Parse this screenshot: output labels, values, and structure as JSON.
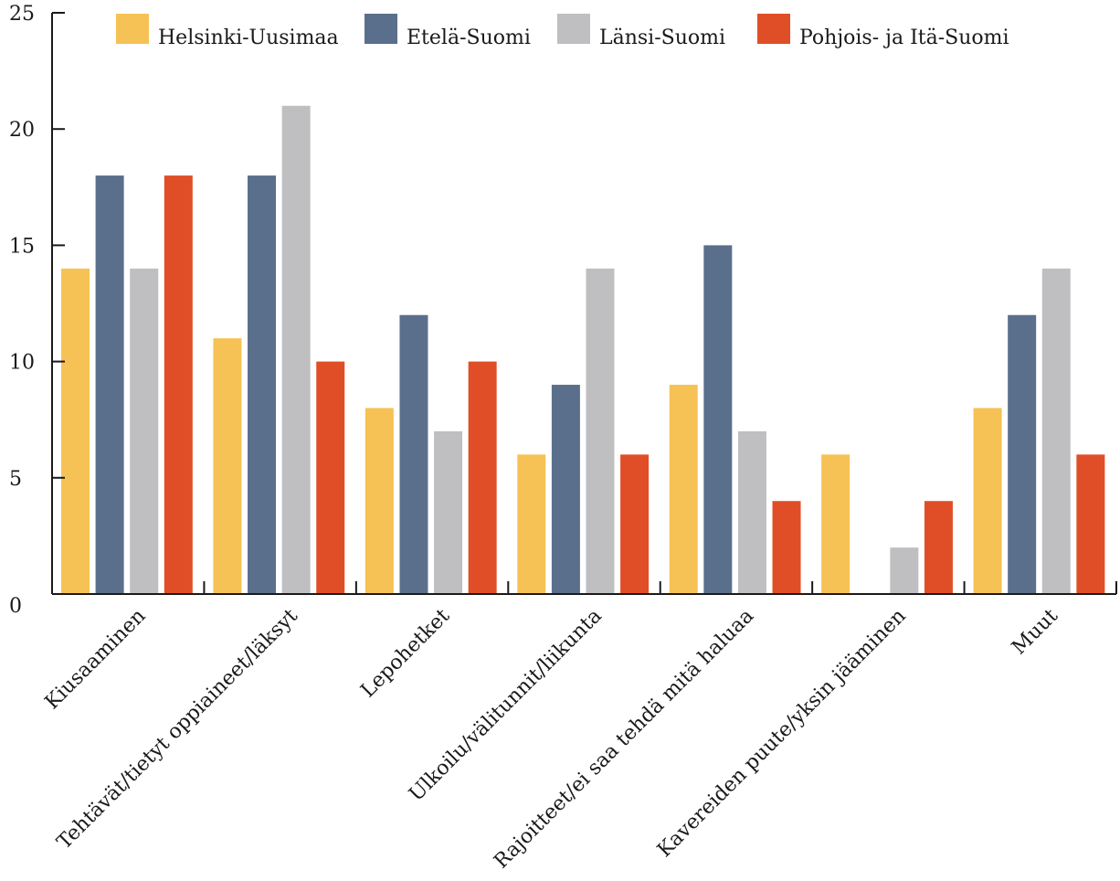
{
  "chart_data": {
    "type": "bar",
    "categories": [
      "Kiusaaminen",
      "Tehtävät/tietyt oppiaineet/läksyt",
      "Lepohetket",
      "Ulkoilu/välitunnit/liikunta",
      "Rajoitteet/ei saa tehdä mitä haluaa",
      "Kavereiden puute/yksin jääminen",
      "Muut"
    ],
    "series": [
      {
        "name": "Helsinki-Uusimaa",
        "color": "#F6C255",
        "values": [
          14,
          11,
          8,
          6,
          9,
          6,
          8
        ]
      },
      {
        "name": "Etelä-Suomi",
        "color": "#5A6F8C",
        "values": [
          18,
          18,
          12,
          9,
          15,
          0,
          12
        ]
      },
      {
        "name": "Länsi-Suomi",
        "color": "#BFBFC1",
        "values": [
          14,
          21,
          7,
          14,
          7,
          2,
          14
        ]
      },
      {
        "name": "Pohjois- ja Itä-Suomi",
        "color": "#E04E27",
        "values": [
          18,
          10,
          10,
          6,
          4,
          4,
          6
        ]
      }
    ],
    "y_ticks": [
      "0",
      "5",
      "10",
      "15",
      "20",
      "25"
    ],
    "ylim": [
      0,
      25
    ],
    "grid": false,
    "legend_position": "top"
  }
}
